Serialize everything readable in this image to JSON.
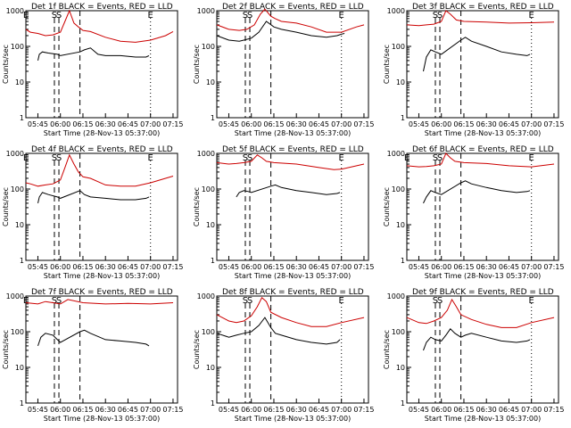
{
  "chart_data": [
    {
      "type": "line",
      "title": "Det 1f BLACK = Events, RED = LLD",
      "ylabel": "Counts/sec",
      "xlabel": "Start Time (28-Nov-13 05:37:00)",
      "yscale": "log",
      "ylim": [
        1,
        1000
      ],
      "ytick_labels": [
        "1",
        "10",
        "100",
        "1000"
      ],
      "x_tick_labels": [
        "05:45",
        "06:00",
        "06:15",
        "06:30",
        "06:45",
        "07:00",
        "07:15"
      ],
      "series": [
        {
          "name": "Events",
          "color": "#000000",
          "x": [
            "05:45",
            "05:46",
            "05:48",
            "05:52",
            "05:58",
            "06:00",
            "06:13",
            "06:16",
            "06:20",
            "06:25",
            "06:30",
            "06:40",
            "06:50",
            "06:57",
            "06:59"
          ],
          "y": [
            40,
            60,
            70,
            65,
            60,
            55,
            70,
            80,
            90,
            60,
            55,
            55,
            50,
            50,
            55
          ]
        },
        {
          "name": "LLD",
          "color": "#cc0000",
          "x": [
            "05:37",
            "05:40",
            "05:45",
            "05:50",
            "05:55",
            "06:00",
            "06:03",
            "06:06",
            "06:09",
            "06:12",
            "06:15",
            "06:20",
            "06:30",
            "06:40",
            "06:50",
            "07:00",
            "07:10",
            "07:15"
          ],
          "y": [
            300,
            250,
            230,
            200,
            210,
            250,
            500,
            1000,
            450,
            350,
            280,
            260,
            180,
            140,
            130,
            150,
            200,
            260
          ]
        }
      ],
      "markers": [
        {
          "label": "E",
          "x": "05:37"
        },
        {
          "label": "S",
          "x": "05:56"
        },
        {
          "label": "S",
          "x": "05:59"
        },
        {
          "label": "E",
          "x": "07:00"
        }
      ]
    },
    {
      "type": "line",
      "title": "Det 2f BLACK = Events, RED = LLD",
      "ylabel": "Counts/sec",
      "xlabel": "Start Time (28-Nov-13 05:37:00)",
      "yscale": "log",
      "ylim": [
        1,
        1000
      ],
      "ytick_labels": [
        "1",
        "10",
        "100",
        "1000"
      ],
      "x_tick_labels": [
        "05:45",
        "06:00",
        "06:15",
        "06:30",
        "06:45",
        "07:00",
        "07:15"
      ],
      "series": [
        {
          "name": "Events",
          "color": "#000000",
          "x": [
            "05:37",
            "05:45",
            "05:52",
            "05:55",
            "06:00",
            "06:05",
            "06:10",
            "06:15",
            "06:20",
            "06:30",
            "06:40",
            "06:50",
            "06:57",
            "07:00",
            "07:02"
          ],
          "y": [
            200,
            150,
            140,
            150,
            170,
            250,
            500,
            350,
            300,
            250,
            200,
            180,
            200,
            220,
            230
          ]
        },
        {
          "name": "LLD",
          "color": "#cc0000",
          "x": [
            "05:37",
            "05:45",
            "05:52",
            "05:57",
            "06:02",
            "06:06",
            "06:09",
            "06:13",
            "06:16",
            "06:20",
            "06:30",
            "06:40",
            "06:50",
            "07:00",
            "07:10",
            "07:15"
          ],
          "y": [
            400,
            300,
            280,
            300,
            400,
            800,
            1100,
            700,
            600,
            500,
            450,
            350,
            250,
            250,
            350,
            400
          ]
        }
      ],
      "markers": [
        {
          "label": "S",
          "x": "05:56"
        },
        {
          "label": "S",
          "x": "05:59"
        },
        {
          "label": "E",
          "x": "07:00"
        }
      ]
    },
    {
      "type": "line",
      "title": "Det 3f BLACK = Events, RED = LLD",
      "ylabel": "Counts/sec",
      "xlabel": "Start Time (28-Nov-13 05:37:00)",
      "yscale": "log",
      "ylim": [
        1,
        1000
      ],
      "ytick_labels": [
        "1",
        "10",
        "100",
        "1000"
      ],
      "x_tick_labels": [
        "05:45",
        "06:00",
        "06:15",
        "06:30",
        "06:45",
        "07:00",
        "07:15"
      ],
      "series": [
        {
          "name": "Events",
          "color": "#000000",
          "x": [
            "05:48",
            "05:50",
            "05:53",
            "05:56",
            "06:00",
            "06:13",
            "06:16",
            "06:20",
            "06:30",
            "06:40",
            "06:50",
            "06:57",
            "06:59"
          ],
          "y": [
            20,
            50,
            80,
            70,
            60,
            150,
            180,
            140,
            100,
            70,
            60,
            55,
            60
          ]
        },
        {
          "name": "LLD",
          "color": "#cc0000",
          "x": [
            "05:37",
            "05:45",
            "05:50",
            "05:55",
            "06:00",
            "06:03",
            "06:06",
            "06:10",
            "06:15",
            "06:30",
            "06:45",
            "07:00",
            "07:15"
          ],
          "y": [
            400,
            380,
            400,
            420,
            500,
            1000,
            800,
            550,
            500,
            480,
            450,
            460,
            480
          ]
        }
      ],
      "markers": [
        {
          "label": "S",
          "x": "05:56"
        },
        {
          "label": "S",
          "x": "05:59"
        },
        {
          "label": "E",
          "x": "07:00"
        }
      ]
    },
    {
      "type": "line",
      "title": "Det 4f BLACK = Events, RED = LLD",
      "ylabel": "Counts/sec",
      "xlabel": "Start Time (28-Nov-13 05:37:00)",
      "yscale": "log",
      "ylim": [
        1,
        1000
      ],
      "ytick_labels": [
        "1",
        "10",
        "100",
        "1000"
      ],
      "x_tick_labels": [
        "05:45",
        "06:00",
        "06:15",
        "06:30",
        "06:45",
        "07:00",
        "07:15"
      ],
      "series": [
        {
          "name": "Events",
          "color": "#000000",
          "x": [
            "05:45",
            "05:46",
            "05:48",
            "05:52",
            "05:58",
            "06:00",
            "06:13",
            "06:16",
            "06:20",
            "06:30",
            "06:40",
            "06:50",
            "06:57",
            "06:59"
          ],
          "y": [
            40,
            60,
            80,
            70,
            60,
            55,
            90,
            70,
            60,
            55,
            50,
            50,
            55,
            60
          ]
        },
        {
          "name": "LLD",
          "color": "#cc0000",
          "x": [
            "05:37",
            "05:40",
            "05:45",
            "05:50",
            "05:55",
            "06:00",
            "06:03",
            "06:06",
            "06:09",
            "06:12",
            "06:15",
            "06:20",
            "06:30",
            "06:40",
            "06:50",
            "07:00",
            "07:10",
            "07:15"
          ],
          "y": [
            150,
            140,
            120,
            130,
            140,
            180,
            400,
            900,
            500,
            300,
            220,
            200,
            130,
            120,
            120,
            150,
            200,
            230
          ]
        }
      ],
      "markers": [
        {
          "label": "E",
          "x": "05:37"
        },
        {
          "label": "S",
          "x": "05:56"
        },
        {
          "label": "S",
          "x": "05:59"
        },
        {
          "label": "E",
          "x": "07:00"
        }
      ]
    },
    {
      "type": "line",
      "title": "Det 5f BLACK = Events, RED = LLD",
      "ylabel": "Counts/sec",
      "xlabel": "Start Time (28-Nov-13 05:37:00)",
      "yscale": "log",
      "ylim": [
        1,
        1000
      ],
      "ytick_labels": [
        "1",
        "10",
        "100",
        "1000"
      ],
      "x_tick_labels": [
        "05:45",
        "06:00",
        "06:15",
        "06:30",
        "06:45",
        "07:00",
        "07:15"
      ],
      "series": [
        {
          "name": "Events",
          "color": "#000000",
          "x": [
            "05:50",
            "05:52",
            "05:55",
            "05:58",
            "06:00",
            "06:13",
            "06:16",
            "06:20",
            "06:30",
            "06:40",
            "06:50",
            "06:57",
            "06:59"
          ],
          "y": [
            60,
            80,
            90,
            85,
            80,
            120,
            130,
            110,
            90,
            80,
            70,
            75,
            80
          ]
        },
        {
          "name": "LLD",
          "color": "#cc0000",
          "x": [
            "05:37",
            "05:45",
            "05:50",
            "05:55",
            "06:00",
            "06:04",
            "06:07",
            "06:10",
            "06:15",
            "06:30",
            "06:45",
            "06:55",
            "07:00",
            "07:15"
          ],
          "y": [
            550,
            500,
            520,
            550,
            600,
            900,
            750,
            600,
            550,
            500,
            400,
            350,
            360,
            500
          ]
        }
      ],
      "markers": [
        {
          "label": "S",
          "x": "05:56"
        },
        {
          "label": "S",
          "x": "05:59"
        },
        {
          "label": "E",
          "x": "07:00"
        }
      ]
    },
    {
      "type": "line",
      "title": "Det 6f BLACK = Events, RED = LLD",
      "ylabel": "Counts/sec",
      "xlabel": "Start Time (28-Nov-13 05:37:00)",
      "yscale": "log",
      "ylim": [
        1,
        1000
      ],
      "ytick_labels": [
        "1",
        "10",
        "100",
        "1000"
      ],
      "x_tick_labels": [
        "05:45",
        "06:00",
        "06:15",
        "06:30",
        "06:45",
        "07:00",
        "07:15"
      ],
      "series": [
        {
          "name": "Events",
          "color": "#000000",
          "x": [
            "05:48",
            "05:50",
            "05:53",
            "05:56",
            "06:00",
            "06:13",
            "06:16",
            "06:20",
            "06:30",
            "06:40",
            "06:50",
            "06:57",
            "06:59"
          ],
          "y": [
            40,
            60,
            90,
            80,
            70,
            150,
            170,
            140,
            110,
            90,
            80,
            85,
            90
          ]
        },
        {
          "name": "LLD",
          "color": "#cc0000",
          "x": [
            "05:37",
            "05:45",
            "05:50",
            "05:55",
            "06:00",
            "06:03",
            "06:06",
            "06:09",
            "06:15",
            "06:30",
            "06:45",
            "07:00",
            "07:15"
          ],
          "y": [
            450,
            420,
            430,
            450,
            500,
            1000,
            750,
            600,
            550,
            520,
            450,
            420,
            500
          ]
        }
      ],
      "markers": [
        {
          "label": "E",
          "x": "05:37"
        },
        {
          "label": "S",
          "x": "05:56"
        },
        {
          "label": "S",
          "x": "05:59"
        },
        {
          "label": "E",
          "x": "07:00"
        }
      ]
    },
    {
      "type": "line",
      "title": "Det 7f BLACK = Events, RED = LLD",
      "ylabel": "Counts/sec",
      "xlabel": "Start Time (28-Nov-13 05:37:00)",
      "yscale": "log",
      "ylim": [
        1,
        1000
      ],
      "ytick_labels": [
        "1",
        "10",
        "100",
        "1000"
      ],
      "x_tick_labels": [
        "05:45",
        "06:00",
        "06:15",
        "06:30",
        "06:45",
        "07:00",
        "07:15"
      ],
      "series": [
        {
          "name": "Events",
          "color": "#000000",
          "x": [
            "05:45",
            "05:47",
            "05:50",
            "05:55",
            "05:58",
            "06:00",
            "06:13",
            "06:16",
            "06:20",
            "06:30",
            "06:40",
            "06:50",
            "06:57",
            "06:59"
          ],
          "y": [
            40,
            70,
            90,
            80,
            60,
            50,
            100,
            110,
            90,
            60,
            55,
            50,
            45,
            40
          ]
        },
        {
          "name": "LLD",
          "color": "#cc0000",
          "x": [
            "05:37",
            "05:45",
            "05:50",
            "05:55",
            "06:00",
            "06:05",
            "06:15",
            "06:30",
            "06:45",
            "07:00",
            "07:15"
          ],
          "y": [
            650,
            600,
            700,
            650,
            600,
            800,
            650,
            600,
            620,
            600,
            650
          ]
        }
      ],
      "markers": [
        {
          "label": "E",
          "x": "05:37"
        },
        {
          "label": "S",
          "x": "05:56"
        },
        {
          "label": "S",
          "x": "05:59"
        }
      ]
    },
    {
      "type": "line",
      "title": "Det 8f BLACK = Events, RED = LLD",
      "ylabel": "Counts/sec",
      "xlabel": "Start Time (28-Nov-13 05:37:00)",
      "yscale": "log",
      "ylim": [
        1,
        1000
      ],
      "ytick_labels": [
        "1",
        "10",
        "100",
        "1000"
      ],
      "x_tick_labels": [
        "05:45",
        "06:00",
        "06:15",
        "06:30",
        "06:45",
        "07:00",
        "07:15"
      ],
      "series": [
        {
          "name": "Events",
          "color": "#000000",
          "x": [
            "05:37",
            "05:45",
            "05:50",
            "05:55",
            "06:00",
            "06:05",
            "06:09",
            "06:13",
            "06:16",
            "06:20",
            "06:30",
            "06:40",
            "06:50",
            "06:57",
            "06:59"
          ],
          "y": [
            90,
            70,
            80,
            90,
            100,
            150,
            250,
            130,
            90,
            80,
            60,
            50,
            45,
            50,
            60
          ]
        },
        {
          "name": "LLD",
          "color": "#cc0000",
          "x": [
            "05:37",
            "05:45",
            "05:50",
            "05:55",
            "06:00",
            "06:04",
            "06:07",
            "06:10",
            "06:13",
            "06:20",
            "06:30",
            "06:40",
            "06:50",
            "07:00",
            "07:15"
          ],
          "y": [
            300,
            200,
            180,
            200,
            280,
            500,
            900,
            700,
            350,
            250,
            180,
            140,
            140,
            180,
            250
          ]
        }
      ],
      "markers": [
        {
          "label": "S",
          "x": "05:56"
        },
        {
          "label": "S",
          "x": "05:59"
        },
        {
          "label": "E",
          "x": "07:00"
        }
      ]
    },
    {
      "type": "line",
      "title": "Det 9f BLACK = Events, RED = LLD",
      "ylabel": "Counts/sec",
      "xlabel": "Start Time (28-Nov-13 05:37:00)",
      "yscale": "log",
      "ylim": [
        1,
        1000
      ],
      "ytick_labels": [
        "1",
        "10",
        "100",
        "1000"
      ],
      "x_tick_labels": [
        "05:45",
        "06:00",
        "06:15",
        "06:30",
        "06:45",
        "07:00",
        "07:15"
      ],
      "series": [
        {
          "name": "Events",
          "color": "#000000",
          "x": [
            "05:48",
            "05:50",
            "05:53",
            "05:56",
            "06:00",
            "06:03",
            "06:06",
            "06:09",
            "06:13",
            "06:16",
            "06:20",
            "06:30",
            "06:40",
            "06:50",
            "06:57",
            "06:59"
          ],
          "y": [
            30,
            50,
            70,
            60,
            55,
            80,
            120,
            90,
            70,
            80,
            90,
            70,
            55,
            50,
            55,
            60
          ]
        },
        {
          "name": "LLD",
          "color": "#cc0000",
          "x": [
            "05:37",
            "05:45",
            "05:50",
            "05:55",
            "06:00",
            "06:04",
            "06:07",
            "06:10",
            "06:13",
            "06:20",
            "06:30",
            "06:40",
            "06:50",
            "07:00",
            "07:15"
          ],
          "y": [
            250,
            180,
            170,
            200,
            250,
            400,
            800,
            500,
            300,
            220,
            160,
            130,
            130,
            180,
            250
          ]
        }
      ],
      "markers": [
        {
          "label": "S",
          "x": "05:56"
        },
        {
          "label": "S",
          "x": "05:59"
        },
        {
          "label": "E",
          "x": "07:00"
        }
      ]
    }
  ]
}
